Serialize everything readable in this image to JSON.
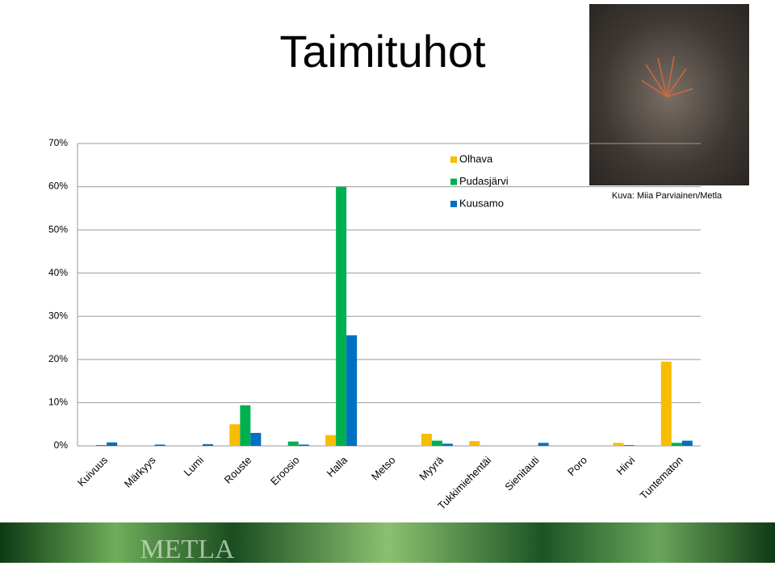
{
  "title": "Taimituhot",
  "photo_caption": "Kuva: Miia Parviainen/Metla",
  "footer_logo": "METLA",
  "chart_data": {
    "type": "bar",
    "categories": [
      "Kuivuus",
      "Märkyys",
      "Lumi",
      "Rouste",
      "Eroosio",
      "Halla",
      "Metso",
      "Myyrä",
      "Tukkimiehentäi",
      "Sienitauti",
      "Poro",
      "Hirvi",
      "Tuntematon"
    ],
    "series": [
      {
        "name": "Olhava",
        "color": "#f7bd00",
        "values": [
          0,
          0,
          0,
          5.0,
          0,
          2.5,
          0,
          2.8,
          1.1,
          0,
          0,
          0.7,
          19.5
        ]
      },
      {
        "name": "Pudasjärvi",
        "color": "#00b050",
        "values": [
          0.2,
          0,
          0,
          9.4,
          1.0,
          60,
          0,
          1.2,
          0,
          0,
          0,
          0.2,
          0.7
        ]
      },
      {
        "name": "Kuusamo",
        "color": "#0070c0",
        "values": [
          0.8,
          0.3,
          0.4,
          3.0,
          0.3,
          25.6,
          0,
          0.5,
          0,
          0.7,
          0,
          0,
          1.2
        ]
      }
    ],
    "ylim": [
      0,
      70
    ],
    "yticks": [
      {
        "value": 0,
        "label": "0%"
      },
      {
        "value": 10,
        "label": "10%"
      },
      {
        "value": 20,
        "label": "20%"
      },
      {
        "value": 30,
        "label": "30%"
      },
      {
        "value": 40,
        "label": "40%"
      },
      {
        "value": 50,
        "label": "50%"
      },
      {
        "value": 60,
        "label": "60%"
      },
      {
        "value": 70,
        "label": "70%"
      }
    ],
    "grid": true,
    "legend": "top"
  }
}
